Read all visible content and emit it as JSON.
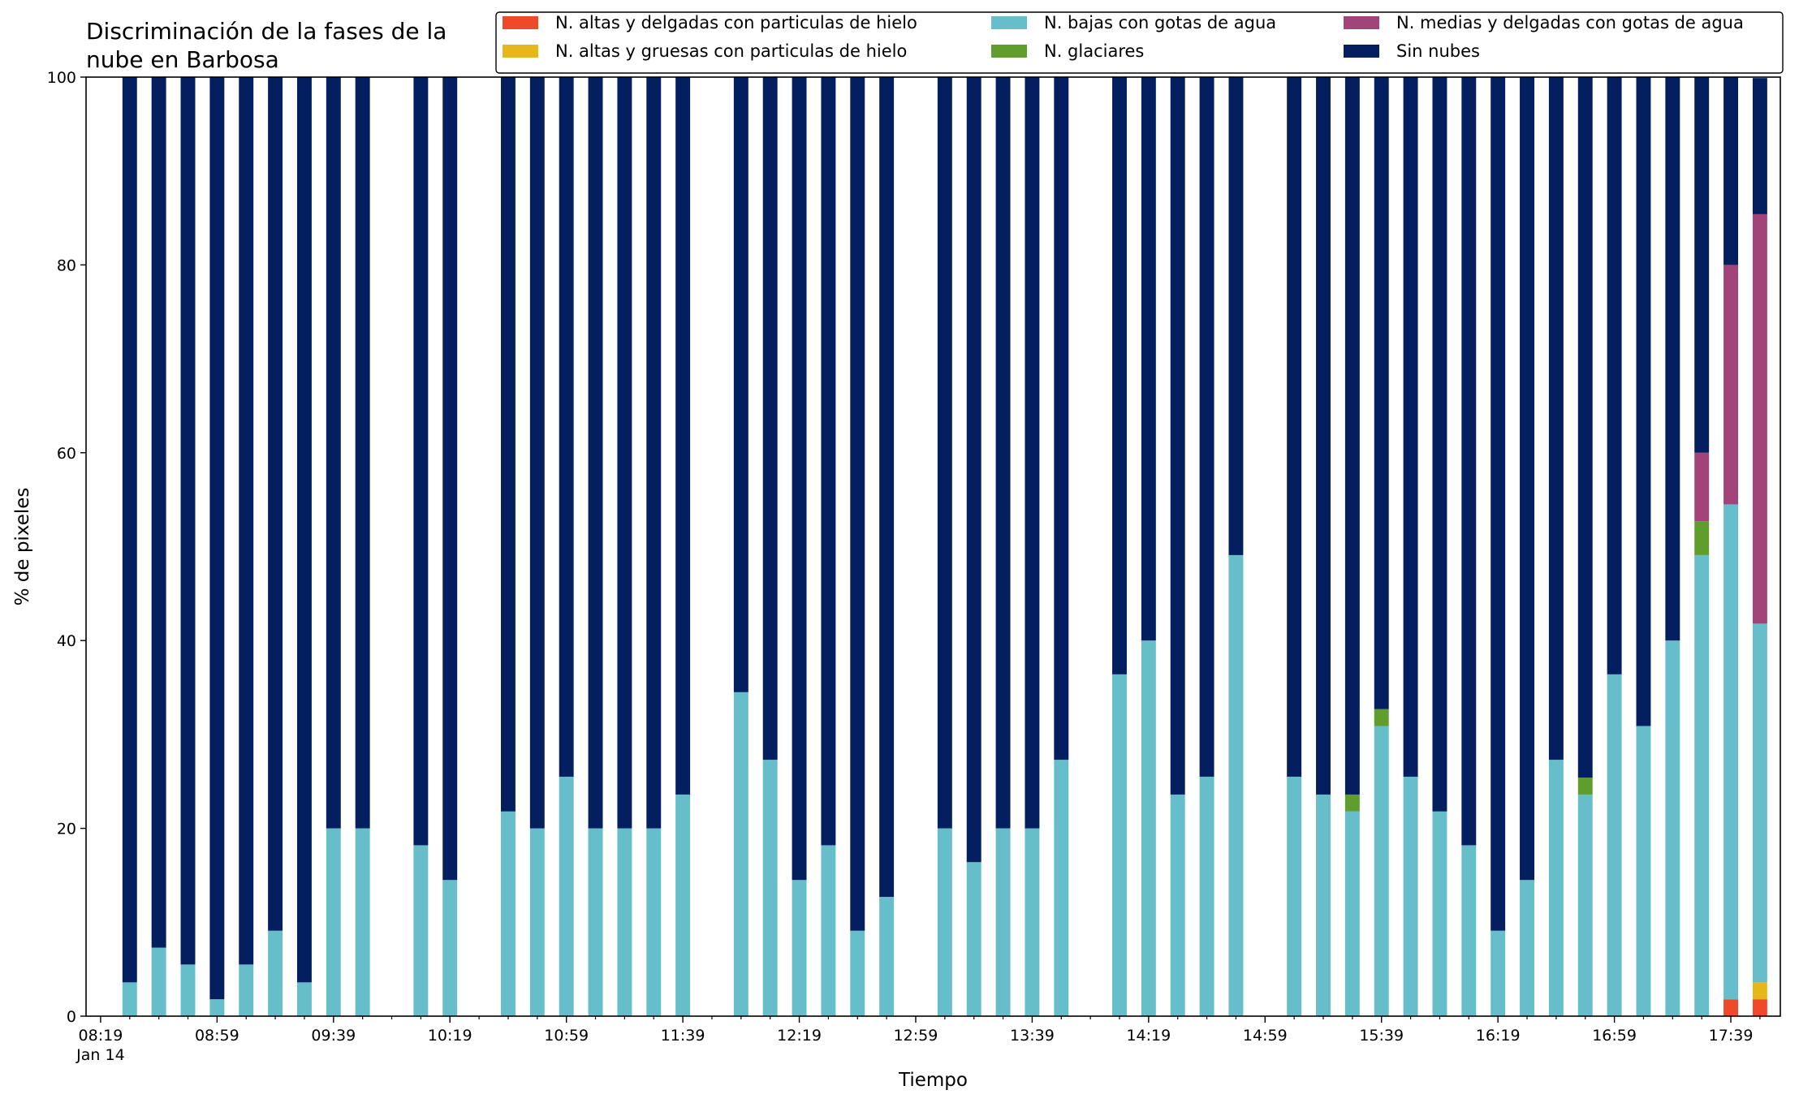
{
  "chart_data": {
    "type": "bar",
    "stacked": true,
    "title": "Discriminación de la fases de la\nnube en Barbosa",
    "xlabel": "Tiempo",
    "ylabel": "% de pixeles",
    "ylim": [
      0,
      100
    ],
    "yticks": [
      0,
      20,
      40,
      60,
      80,
      100
    ],
    "xlim_minutes": [
      -5,
      577
    ],
    "x_tick_minutes": [
      0,
      40,
      80,
      120,
      160,
      200,
      240,
      280,
      320,
      360,
      400,
      440,
      480,
      520,
      560
    ],
    "x_tick_labels": [
      "08:19\nJan 14",
      "08:59",
      "09:39",
      "10:19",
      "10:59",
      "11:39",
      "12:19",
      "12:59",
      "13:39",
      "14:19",
      "14:59",
      "15:39",
      "16:19",
      "16:59",
      "17:39"
    ],
    "x_minor_tick_minutes": [
      10,
      20,
      30,
      50,
      60,
      70,
      90,
      100,
      110,
      130,
      140,
      150,
      170,
      180,
      190,
      210,
      220,
      230,
      250,
      260,
      270,
      290,
      300,
      310,
      330,
      340,
      350,
      370,
      380,
      390,
      410,
      420,
      430,
      450,
      460,
      470,
      490,
      500,
      510,
      530,
      540,
      550,
      570
    ],
    "bar_width_minutes": 5,
    "legend_position": "top-right",
    "legend_columns": 3,
    "x": [
      10,
      20,
      30,
      40,
      50,
      60,
      70,
      80,
      90,
      110,
      120,
      140,
      150,
      160,
      170,
      180,
      190,
      200,
      220,
      230,
      240,
      250,
      260,
      270,
      290,
      300,
      310,
      320,
      330,
      350,
      360,
      370,
      380,
      390,
      410,
      420,
      430,
      440,
      450,
      460,
      470,
      480,
      490,
      500,
      510,
      520,
      530,
      540,
      550,
      560,
      570
    ],
    "series": [
      {
        "name": "N. altas y delgadas con particulas de hielo",
        "color": "#EE4A2A",
        "values": [
          0,
          0,
          0,
          0,
          0,
          0,
          0,
          0,
          0,
          0,
          0,
          0,
          0,
          0,
          0,
          0,
          0,
          0,
          0,
          0,
          0,
          0,
          0,
          0,
          0,
          0,
          0,
          0,
          0,
          0,
          0,
          0,
          0,
          0,
          0,
          0,
          0,
          0,
          0,
          0,
          0,
          0,
          0,
          0,
          0,
          0,
          0,
          0,
          0,
          1.8,
          1.8
        ]
      },
      {
        "name": "N. altas y gruesas con particulas de hielo",
        "color": "#E6B719",
        "values": [
          0,
          0,
          0,
          0,
          0,
          0,
          0,
          0,
          0,
          0,
          0,
          0,
          0,
          0,
          0,
          0,
          0,
          0,
          0,
          0,
          0,
          0,
          0,
          0,
          0,
          0,
          0,
          0,
          0,
          0,
          0,
          0,
          0,
          0,
          0,
          0,
          0,
          0,
          0,
          0,
          0,
          0,
          0,
          0,
          0,
          0,
          0,
          0,
          0,
          0,
          1.8
        ]
      },
      {
        "name": "N. bajas con gotas de agua",
        "color": "#66BECA",
        "values": [
          3.6,
          7.3,
          5.5,
          1.8,
          5.5,
          9.1,
          3.6,
          20,
          20,
          18.2,
          14.5,
          21.8,
          20,
          25.5,
          20,
          20,
          20,
          23.6,
          34.5,
          27.3,
          14.5,
          18.2,
          9.1,
          12.7,
          20,
          16.4,
          20,
          20,
          27.3,
          36.4,
          40,
          23.6,
          25.5,
          49.1,
          25.5,
          23.6,
          21.8,
          30.9,
          25.5,
          21.8,
          18.2,
          9.1,
          14.5,
          27.3,
          23.6,
          36.4,
          30.9,
          40,
          49.1,
          52.7,
          38.2
        ]
      },
      {
        "name": "N. glaciares",
        "color": "#5F9E2D",
        "values": [
          0,
          0,
          0,
          0,
          0,
          0,
          0,
          0,
          0,
          0,
          0,
          0,
          0,
          0,
          0,
          0,
          0,
          0,
          0,
          0,
          0,
          0,
          0,
          0,
          0,
          0,
          0,
          0,
          0,
          0,
          0,
          0,
          0,
          0,
          0,
          0,
          1.8,
          1.8,
          0,
          0,
          0,
          0,
          0,
          0,
          1.8,
          0,
          0,
          0,
          3.6,
          0,
          0
        ]
      },
      {
        "name": "N. medias y delgadas con gotas de agua",
        "color": "#A24479",
        "values": [
          0,
          0,
          0,
          0,
          0,
          0,
          0,
          0,
          0,
          0,
          0,
          0,
          0,
          0,
          0,
          0,
          0,
          0,
          0,
          0,
          0,
          0,
          0,
          0,
          0,
          0,
          0,
          0,
          0,
          0,
          0,
          0,
          0,
          0,
          0,
          0,
          0,
          0,
          0,
          0,
          0,
          0,
          0,
          0,
          0,
          0,
          0,
          0,
          7.3,
          25.5,
          43.6
        ]
      },
      {
        "name": "Sin nubes",
        "color": "#031F5F",
        "values": [
          96.4,
          92.7,
          94.5,
          98.2,
          94.5,
          90.9,
          96.4,
          80,
          80,
          81.8,
          85.5,
          78.2,
          80,
          74.5,
          80,
          80,
          80,
          76.4,
          65.5,
          72.7,
          85.5,
          81.8,
          90.9,
          87.3,
          80,
          83.6,
          80,
          80,
          72.7,
          63.6,
          60,
          76.4,
          74.5,
          50.9,
          74.5,
          76.4,
          76.4,
          67.3,
          74.5,
          78.2,
          81.8,
          90.9,
          85.5,
          72.7,
          74.6,
          63.6,
          69.1,
          60,
          40,
          20,
          14.5
        ]
      }
    ]
  }
}
